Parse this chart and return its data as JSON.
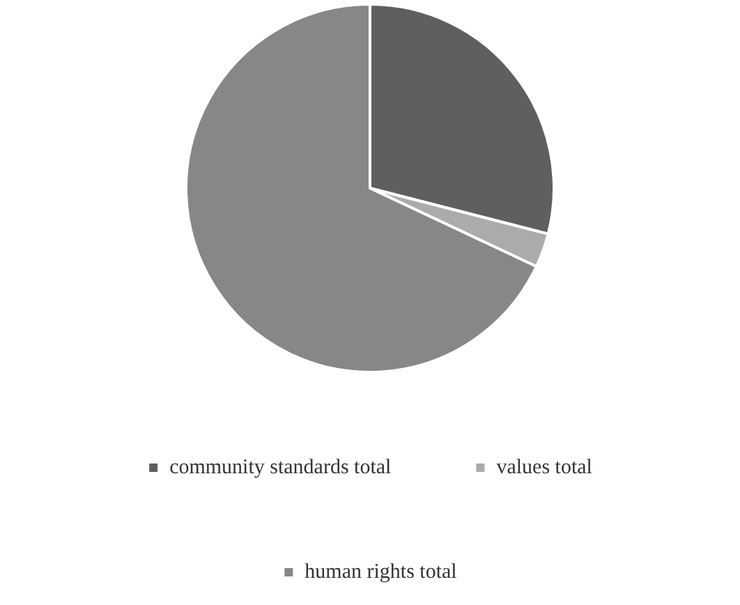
{
  "chart_data": {
    "type": "pie",
    "categories": [
      "community standards total",
      "values total",
      "human rights total"
    ],
    "values": [
      29,
      3,
      68
    ],
    "colors": [
      "#5f5f61",
      "#ababab",
      "#87878a"
    ],
    "legend": "bottom"
  }
}
